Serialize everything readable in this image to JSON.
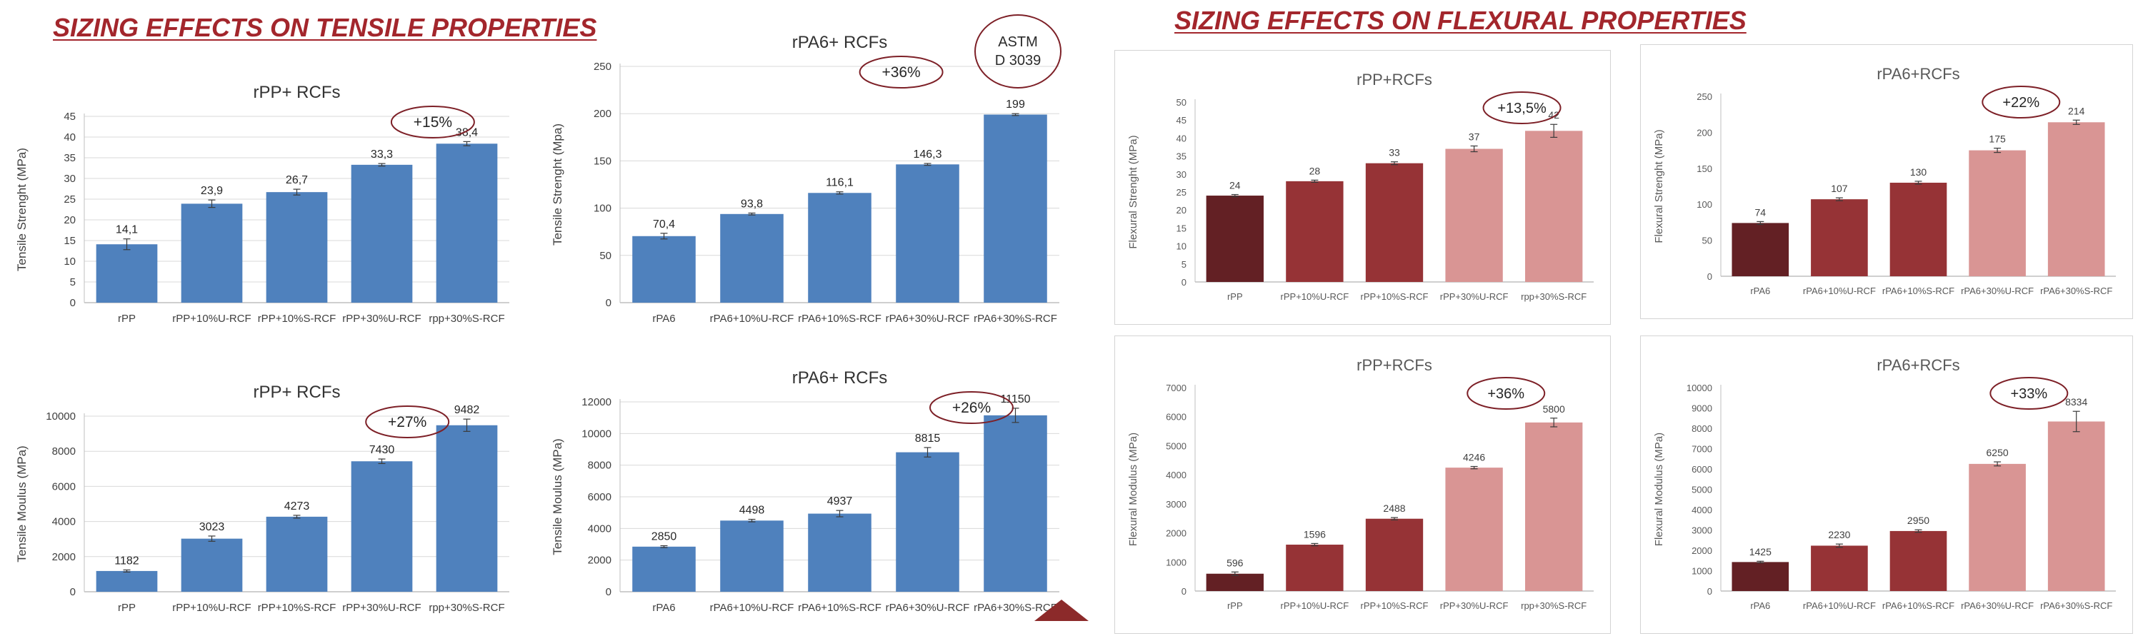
{
  "headings": {
    "tensile": "SIZING EFFECTS ON TENSILE  PROPERTIES",
    "flexural": "SIZING EFFECTS ON FLEXURAL PROPERTIES"
  },
  "stamp": {
    "line1": "ASTM",
    "line2": "D 3039"
  },
  "colors": {
    "blue": "#4f81bd",
    "dark_red": "#632024",
    "red": "#963336",
    "pink": "#d99594",
    "heading": "#a3262c"
  },
  "chart_data": [
    {
      "id": "tensile-strength-rpp",
      "type": "bar",
      "title": "rPP+ RCFs",
      "ylabel": "Tensile Strenght (MPa)",
      "categories": [
        "rPP",
        "rPP+10%U-RCF",
        "rPP+10%S-RCF",
        "rPP+30%U-RCF",
        "rpp+30%S-RCF"
      ],
      "values": [
        14.1,
        23.9,
        26.7,
        33.3,
        38.4
      ],
      "labels": [
        "14,1",
        "23,9",
        "26,7",
        "33,3",
        "38,4"
      ],
      "errors": [
        1.3,
        0.9,
        0.7,
        0.3,
        0.5
      ],
      "ylim": [
        0,
        45
      ],
      "yticks": [
        0,
        5,
        10,
        15,
        20,
        25,
        30,
        35,
        40,
        45
      ],
      "annotation": "+15%",
      "annotation_at": 3.6,
      "grid": true
    },
    {
      "id": "tensile-strength-rpa6",
      "type": "bar",
      "title": "rPA6+ RCFs",
      "ylabel": "Tensile Strenght (Mpa)",
      "categories": [
        "rPA6",
        "rPA6+10%U-RCF",
        "rPA6+10%S-RCF",
        "rPA6+30%U-RCF",
        "rPA6+30%S-RCF"
      ],
      "values": [
        70.4,
        93.8,
        116.1,
        146.3,
        199
      ],
      "labels": [
        "70,4",
        "93,8",
        "116,1",
        "146,3",
        "199"
      ],
      "errors": [
        3,
        1,
        1.2,
        1,
        1
      ],
      "ylim": [
        0,
        250
      ],
      "yticks": [
        0,
        50,
        100,
        150,
        200,
        250
      ],
      "annotation": "+36%",
      "annotation_at": 2.7,
      "grid": true
    },
    {
      "id": "tensile-modulus-rpp",
      "type": "bar",
      "title": "rPP+ RCFs",
      "ylabel": "Tensile Moulus  (MPa)",
      "categories": [
        "rPP",
        "rPP+10%U-RCF",
        "rPP+10%S-RCF",
        "rPP+30%U-RCF",
        "rpp+30%S-RCF"
      ],
      "values": [
        1182,
        3023,
        4273,
        7430,
        9482
      ],
      "labels": [
        "1182",
        "3023",
        "4273",
        "7430",
        "9482"
      ],
      "errors": [
        60,
        150,
        80,
        130,
        350
      ],
      "ylim": [
        0,
        10000
      ],
      "yticks": [
        0,
        2000,
        4000,
        6000,
        8000,
        10000
      ],
      "annotation": "+27%",
      "annotation_at": 3.3,
      "grid": true
    },
    {
      "id": "tensile-modulus-rpa6",
      "type": "bar",
      "title": "rPA6+ RCFs",
      "ylabel": "Tensile Moulus  (MPa)",
      "categories": [
        "rPA6",
        "rPA6+10%U-RCF",
        "rPA6+10%S-RCF",
        "rPA6+30%U-RCF",
        "rPA6+30%S-RCF"
      ],
      "values": [
        2850,
        4498,
        4937,
        8815,
        11150
      ],
      "labels": [
        "2850",
        "4498",
        "4937",
        "8815",
        "11150"
      ],
      "errors": [
        60,
        80,
        200,
        300,
        450
      ],
      "ylim": [
        0,
        12000
      ],
      "yticks": [
        0,
        2000,
        4000,
        6000,
        8000,
        10000,
        12000
      ],
      "annotation": "+26%",
      "annotation_at": 3.5,
      "grid": true
    },
    {
      "id": "flexural-strength-rpp",
      "type": "bar",
      "title": "rPP+RCFs",
      "ylabel": "Flexural Strenght (MPa)",
      "categories": [
        "rPP",
        "rPP+10%U-RCF",
        "rPP+10%S-RCF",
        "rPP+30%U-RCF",
        "rpp+30%S-RCF"
      ],
      "values": [
        24,
        28,
        33,
        37,
        42
      ],
      "labels": [
        "24",
        "28",
        "33",
        "37",
        "42"
      ],
      "errors": [
        0.3,
        0.3,
        0.4,
        0.8,
        1.8
      ],
      "ylim": [
        0,
        50
      ],
      "yticks": [
        0,
        5,
        10,
        15,
        20,
        25,
        30,
        35,
        40,
        45,
        50
      ],
      "annotation": "+13,5%",
      "annotation_at": 3.6,
      "grid": false
    },
    {
      "id": "flexural-strength-rpa6",
      "type": "bar",
      "title": "rPA6+RCFs",
      "ylabel": "Flexural Strenght (MPa)",
      "categories": [
        "rPA6",
        "rPA6+10%U-RCF",
        "rPA6+10%S-RCF",
        "rPA6+30%U-RCF",
        "rPA6+30%S-RCF"
      ],
      "values": [
        74,
        107,
        130,
        175,
        214
      ],
      "labels": [
        "74",
        "107",
        "130",
        "175",
        "214"
      ],
      "errors": [
        2,
        2,
        2,
        3,
        3
      ],
      "ylim": [
        0,
        250
      ],
      "yticks": [
        0,
        50,
        100,
        150,
        200,
        250
      ],
      "annotation": "+22%",
      "annotation_at": 3.3,
      "grid": false
    },
    {
      "id": "flexural-modulus-rpp",
      "type": "bar",
      "title": "rPP+RCFs",
      "ylabel": "Flexural Modulus (MPa)",
      "categories": [
        "rPP",
        "rPP+10%U-RCF",
        "rPP+10%S-RCF",
        "rPP+30%U-RCF",
        "rpp+30%S-RCF"
      ],
      "values": [
        596,
        1596,
        2488,
        4246,
        5800
      ],
      "labels": [
        "596",
        "1596",
        "2488",
        "4246",
        "5800"
      ],
      "errors": [
        60,
        40,
        40,
        40,
        150
      ],
      "ylim": [
        0,
        7000
      ],
      "yticks": [
        0,
        1000,
        2000,
        3000,
        4000,
        5000,
        6000,
        7000
      ],
      "annotation": "+36%",
      "annotation_at": 3.4,
      "grid": false
    },
    {
      "id": "flexural-modulus-rpa6",
      "type": "bar",
      "title": "rPA6+RCFs",
      "ylabel": "Flexural Modulus (MPa)",
      "categories": [
        "rPA6",
        "rPA6+10%U-RCF",
        "rPA6+10%S-RCF",
        "rPA6+30%U-RCF",
        "rPA6+30%S-RCF"
      ],
      "values": [
        1425,
        2230,
        2950,
        6250,
        8334
      ],
      "labels": [
        "1425",
        "2230",
        "2950",
        "6250",
        "8334"
      ],
      "errors": [
        40,
        80,
        60,
        100,
        500
      ],
      "ylim": [
        0,
        10000
      ],
      "yticks": [
        0,
        1000,
        2000,
        3000,
        4000,
        5000,
        6000,
        7000,
        8000,
        9000,
        10000
      ],
      "annotation": "+33%",
      "annotation_at": 3.4,
      "grid": false
    }
  ]
}
